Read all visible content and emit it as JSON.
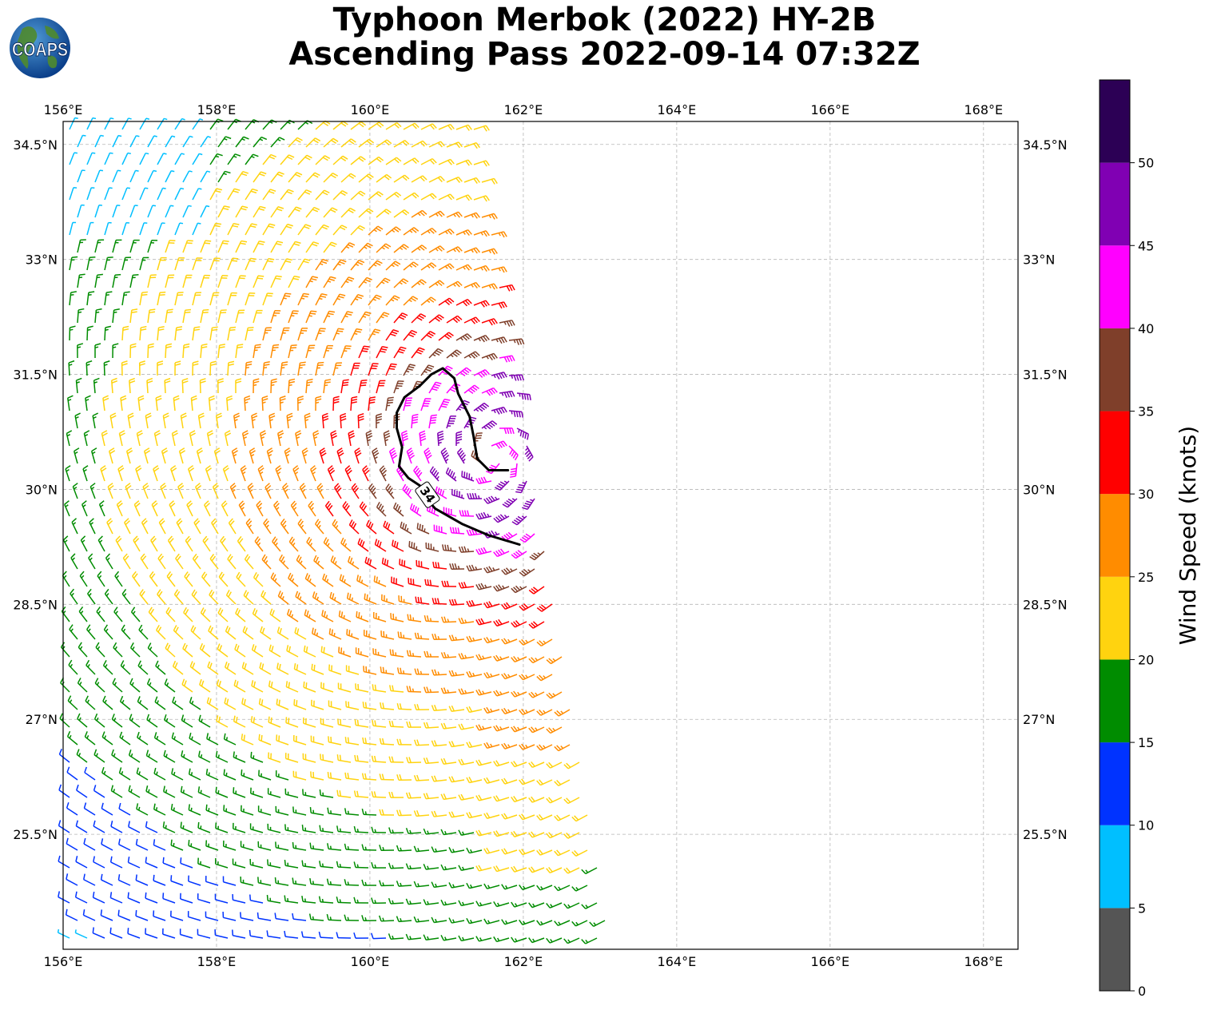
{
  "title": {
    "line1": "Typhoon Merbok (2022) HY-2B",
    "line2": "Ascending Pass 2022-09-14 07:32Z"
  },
  "logo": {
    "text": "COAPS",
    "icon": "globe-logo-icon"
  },
  "map": {
    "lon_range": [
      156.0,
      168.45
    ],
    "lat_range": [
      24.0,
      34.8
    ],
    "lon_ticks": [
      "156°E",
      "158°E",
      "160°E",
      "162°E",
      "164°E",
      "166°E",
      "168°E"
    ],
    "lat_ticks": [
      "25.5°N",
      "27°N",
      "28.5°N",
      "30°N",
      "31.5°N",
      "33°N",
      "34.5°N"
    ],
    "grid": true,
    "storm_center": [
      161.6,
      30.45
    ],
    "contour_label": "34",
    "contour_level_knots": 34,
    "contour_color": "#000000"
  },
  "colorbar": {
    "label": "Wind Speed (knots)",
    "ticks": [
      "0",
      "5",
      "10",
      "15",
      "20",
      "25",
      "30",
      "35",
      "40",
      "45",
      "50"
    ],
    "bins": [
      {
        "from": 0,
        "to": 5,
        "color": "#555555"
      },
      {
        "from": 5,
        "to": 10,
        "color": "#00bfff"
      },
      {
        "from": 10,
        "to": 15,
        "color": "#0033ff"
      },
      {
        "from": 15,
        "to": 20,
        "color": "#008c00"
      },
      {
        "from": 20,
        "to": 25,
        "color": "#ffd30f"
      },
      {
        "from": 25,
        "to": 30,
        "color": "#ff8c00"
      },
      {
        "from": 30,
        "to": 35,
        "color": "#ff0000"
      },
      {
        "from": 35,
        "to": 40,
        "color": "#7f3f2a"
      },
      {
        "from": 40,
        "to": 45,
        "color": "#ff00ff"
      },
      {
        "from": 45,
        "to": 50,
        "color": "#8000b3"
      },
      {
        "from": 50,
        "to": 55,
        "color": "#2c0055"
      }
    ]
  }
}
